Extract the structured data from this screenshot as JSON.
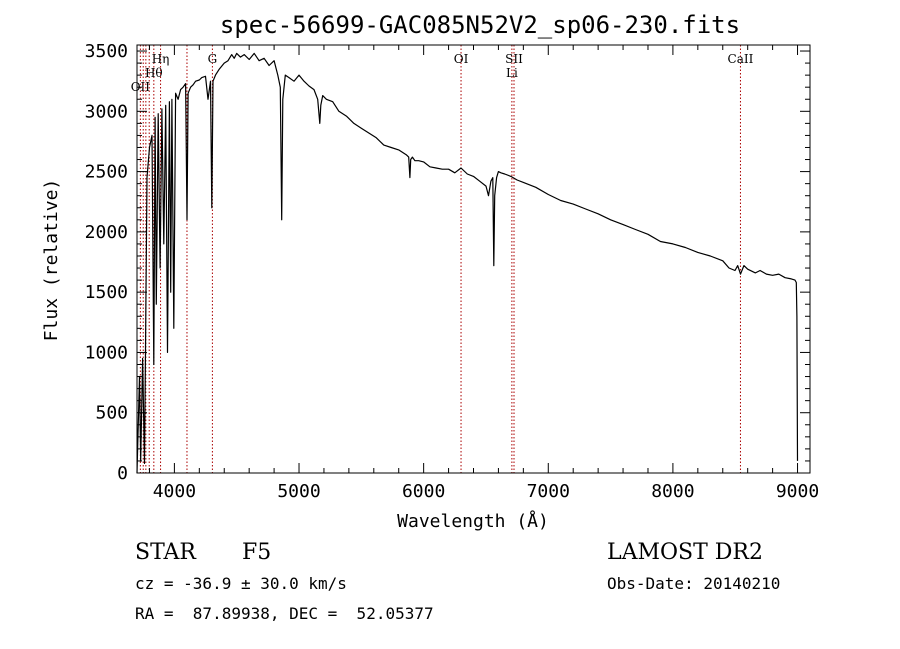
{
  "chart_data": {
    "type": "line",
    "title": "spec-56699-GAC085N52V2_sp06-230.fits",
    "xlabel": "Wavelength (Å)",
    "ylabel": "Flux (relative)",
    "xlim": [
      3700,
      9100
    ],
    "ylim": [
      0,
      3550
    ],
    "xticks": [
      4000,
      5000,
      6000,
      7000,
      8000,
      9000
    ],
    "yticks": [
      0,
      500,
      1000,
      1500,
      2000,
      2500,
      3000,
      3500
    ],
    "series": [
      {
        "x": [
          3700,
          3720,
          3730,
          3745,
          3760,
          3780,
          3800,
          3820,
          3835,
          3845,
          3855,
          3870,
          3885,
          3900,
          3915,
          3930,
          3945,
          3960,
          3970,
          3980,
          3995,
          4010,
          4030,
          4050,
          4070,
          4090,
          4101,
          4110,
          4130,
          4150,
          4170,
          4200,
          4220,
          4250,
          4270,
          4290,
          4300,
          4310,
          4330,
          4360,
          4400,
          4430,
          4460,
          4480,
          4500,
          4530,
          4560,
          4600,
          4640,
          4680,
          4720,
          4760,
          4800,
          4830,
          4850,
          4861,
          4870,
          4890,
          4920,
          4960,
          5000,
          5040,
          5080,
          5120,
          5150,
          5167,
          5175,
          5190,
          5220,
          5270,
          5320,
          5380,
          5440,
          5500,
          5560,
          5620,
          5680,
          5740,
          5800,
          5860,
          5880,
          5890,
          5896,
          5910,
          5930,
          5960,
          6000,
          6050,
          6100,
          6150,
          6200,
          6250,
          6300,
          6350,
          6400,
          6450,
          6500,
          6520,
          6540,
          6555,
          6563,
          6570,
          6585,
          6600,
          6620,
          6650,
          6700,
          6750,
          6800,
          6900,
          7000,
          7100,
          7200,
          7300,
          7400,
          7500,
          7600,
          7700,
          7800,
          7900,
          8000,
          8100,
          8200,
          8300,
          8400,
          8450,
          8498,
          8520,
          8542,
          8570,
          8600,
          8662,
          8700,
          8750,
          8800,
          8850,
          8900,
          8950,
          8980,
          8990,
          8995,
          9000
        ],
        "values": [
          0,
          800,
          100,
          950,
          80,
          2450,
          2700,
          2800,
          900,
          2950,
          1400,
          2980,
          1700,
          3020,
          1900,
          3050,
          1000,
          3080,
          1500,
          3100,
          1200,
          3150,
          3100,
          3180,
          3200,
          3230,
          2100,
          3150,
          3200,
          3220,
          3250,
          3260,
          3280,
          3290,
          3100,
          3250,
          2200,
          3250,
          3300,
          3350,
          3400,
          3420,
          3470,
          3440,
          3480,
          3450,
          3470,
          3430,
          3480,
          3420,
          3440,
          3380,
          3420,
          3300,
          3200,
          2100,
          3100,
          3300,
          3280,
          3250,
          3300,
          3250,
          3210,
          3180,
          3100,
          2900,
          3050,
          3130,
          3100,
          3080,
          3000,
          2960,
          2900,
          2860,
          2820,
          2780,
          2720,
          2700,
          2680,
          2640,
          2620,
          2450,
          2600,
          2620,
          2590,
          2590,
          2580,
          2540,
          2530,
          2520,
          2520,
          2490,
          2530,
          2480,
          2460,
          2420,
          2380,
          2300,
          2420,
          2450,
          1720,
          2300,
          2450,
          2500,
          2490,
          2480,
          2460,
          2430,
          2410,
          2370,
          2310,
          2260,
          2230,
          2190,
          2150,
          2100,
          2060,
          2020,
          1980,
          1920,
          1900,
          1870,
          1830,
          1800,
          1760,
          1700,
          1680,
          1720,
          1650,
          1720,
          1690,
          1660,
          1680,
          1650,
          1640,
          1650,
          1620,
          1610,
          1600,
          1580,
          1300,
          100
        ]
      }
    ],
    "lines": [
      {
        "x": 3727,
        "labels": [
          "OII"
        ]
      },
      {
        "x": 3750,
        "labels": []
      },
      {
        "x": 3771,
        "labels": []
      },
      {
        "x": 3798,
        "labels": []
      },
      {
        "x": 3835,
        "labels": [
          "Hθ"
        ]
      },
      {
        "x": 3889,
        "labels": [
          "Hη"
        ]
      },
      {
        "x": 4101,
        "labels": []
      },
      {
        "x": 4305,
        "labels": [
          "G"
        ]
      },
      {
        "x": 6300,
        "labels": [
          "OI"
        ]
      },
      {
        "x": 6708,
        "labels": [
          "Li"
        ]
      },
      {
        "x": 6725,
        "labels": [
          "SII"
        ]
      },
      {
        "x": 8542,
        "labels": [
          "CaII"
        ]
      }
    ]
  },
  "info": {
    "class": "STAR",
    "subclass": "F5",
    "survey": "LAMOST DR2",
    "cz": "cz = -36.9 ± 30.0 km/s",
    "obs_date": "Obs-Date: 20140210",
    "coords": "RA =  87.89938, DEC =  52.05377"
  },
  "colors": {
    "line_marker": "#aa0000",
    "spectrum": "#000000"
  }
}
